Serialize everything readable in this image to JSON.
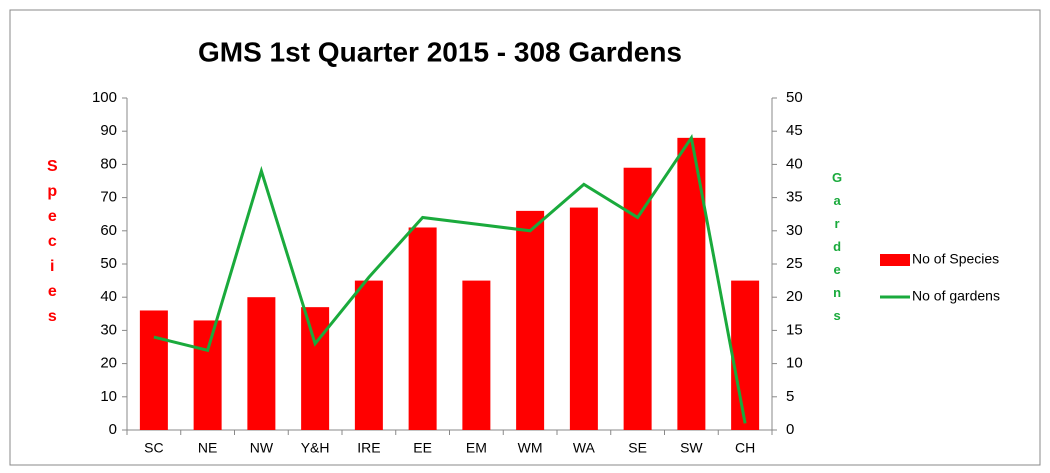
{
  "chart_data": {
    "type": "combo",
    "title": "GMS 1st Quarter 2015 - 308 Gardens",
    "y_label": "Species",
    "y2_label": "Gardens",
    "categories": [
      "SC",
      "NE",
      "NW",
      "Y&H",
      "IRE",
      "EE",
      "EM",
      "WM",
      "WA",
      "SE",
      "SW",
      "CH"
    ],
    "series": [
      {
        "name": "No of Species",
        "type": "bar",
        "color": "#ff0000",
        "values": [
          36,
          33,
          40,
          37,
          45,
          61,
          45,
          66,
          67,
          79,
          88,
          45
        ]
      },
      {
        "name": "No of gardens",
        "type": "line",
        "axis": "y2",
        "color": "#1aaa3c",
        "values": [
          14,
          12,
          39,
          13,
          23,
          32,
          31,
          30,
          37,
          32,
          44,
          1
        ]
      }
    ],
    "ylim": [
      0,
      100
    ],
    "yticks": [
      0,
      10,
      20,
      30,
      40,
      50,
      60,
      70,
      80,
      90,
      100
    ],
    "y2lim": [
      0,
      50
    ],
    "y2ticks": [
      0,
      5,
      10,
      15,
      20,
      25,
      30,
      35,
      40,
      45,
      50
    ],
    "y_label_color": "#ff0000",
    "y2_label_color": "#1aaa3c",
    "legend": "right"
  }
}
